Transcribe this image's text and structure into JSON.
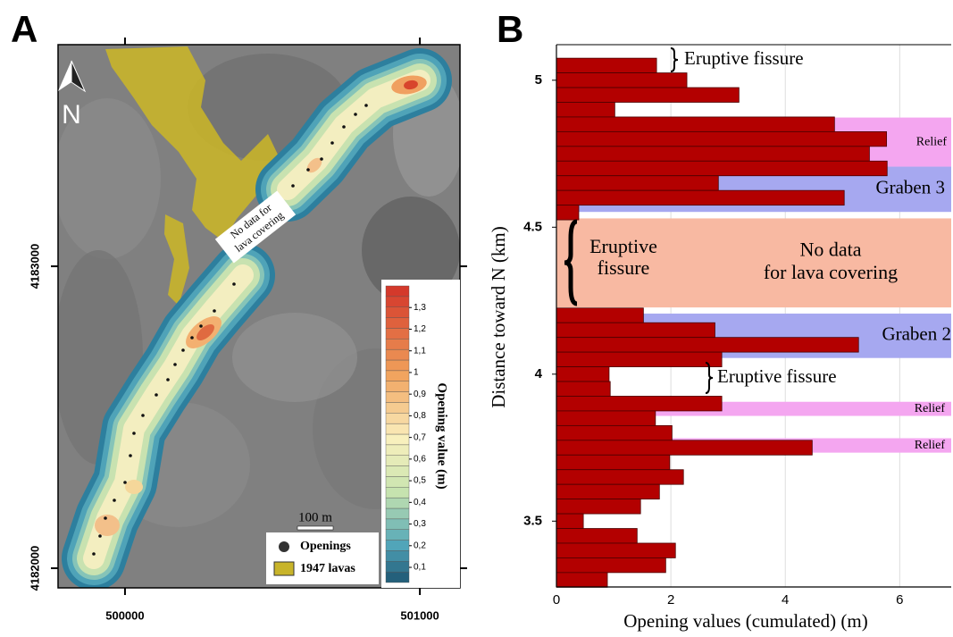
{
  "panel_a": {
    "label": "A",
    "north": "N",
    "no_data_label": [
      "No data for",
      "lava covering"
    ],
    "scale_bar": "100 m",
    "legend": [
      "Openings",
      "1947 lavas"
    ],
    "colorbar": {
      "title": "Opening value (m)",
      "lim": [
        0.03,
        1.4
      ],
      "ticks": [
        {
          "value": 1.3,
          "label": "1,3"
        },
        {
          "value": 1.2,
          "label": "1,2"
        },
        {
          "value": 1.1,
          "label": "1,1"
        },
        1,
        {
          "value": 0.9,
          "label": "0,9"
        },
        {
          "value": 0.8,
          "label": "0,8"
        },
        {
          "value": 0.7,
          "label": "0,7"
        },
        {
          "value": 0.6,
          "label": "0,6"
        },
        {
          "value": 0.5,
          "label": "0,5"
        },
        {
          "value": 0.4,
          "label": "0,4"
        },
        {
          "value": 0.3,
          "label": "0,3"
        },
        {
          "value": 0.2,
          "label": "0,2"
        },
        {
          "value": 0.1,
          "label": "0,1"
        }
      ]
    },
    "xlim": [
      499773,
      501136
    ],
    "ylim": [
      4181935,
      4183734
    ],
    "xticks": [
      500000,
      501000
    ],
    "yticks": [
      4182000,
      4183000
    ]
  },
  "chart_data": {
    "type": "barh",
    "panel_label": "B",
    "xlabel": "Opening values (cumulated) (m)",
    "ylabel": "Distance toward N (km)",
    "y": [
      5.05,
      5.0,
      4.95,
      4.9,
      4.85,
      4.8,
      4.75,
      4.7,
      4.65,
      4.6,
      4.55,
      4.2,
      4.15,
      4.1,
      4.05,
      4.0,
      3.95,
      3.9,
      3.85,
      3.8,
      3.75,
      3.7,
      3.65,
      3.6,
      3.55,
      3.5,
      3.45,
      3.4,
      3.35,
      3.3
    ],
    "values": [
      1.75,
      2.28,
      3.19,
      1.02,
      4.86,
      5.77,
      5.47,
      5.78,
      2.83,
      5.03,
      0.39,
      1.52,
      2.77,
      5.28,
      2.89,
      0.92,
      0.94,
      2.89,
      1.73,
      2.02,
      4.47,
      1.98,
      2.22,
      1.8,
      1.47,
      0.47,
      1.41,
      2.08,
      1.91,
      0.89
    ],
    "color": "#b30000",
    "xlim": [
      0,
      6.9
    ],
    "xticks": [
      0,
      2,
      4,
      6
    ],
    "ylim": [
      3.276,
      5.121
    ],
    "yticks": [
      3.5,
      4,
      4.5,
      5
    ],
    "grid": true,
    "regions": [
      {
        "label": [
          "Relief"
        ],
        "range": [
          4.706,
          4.873
        ],
        "color": "#f4a6f0"
      },
      {
        "label": [
          "Graben 3"
        ],
        "range": [
          4.552,
          4.706
        ],
        "color": "#a6a8f0"
      },
      {
        "label": [
          "No data",
          "for lava covering"
        ],
        "range": [
          4.227,
          4.53
        ],
        "color": "#f8b9a2"
      },
      {
        "label": [
          "Graben 2"
        ],
        "range": [
          4.055,
          4.206
        ],
        "color": "#a6a8f0"
      },
      {
        "label": [
          "Relief"
        ],
        "range": [
          3.858,
          3.906
        ],
        "color": "#f4a6f0"
      },
      {
        "label": [
          "Relief"
        ],
        "range": [
          3.733,
          3.782
        ],
        "color": "#f4a6f0"
      }
    ],
    "annotations": [
      [
        "Eruptive fissure"
      ],
      [
        "Eruptive",
        "fissure"
      ],
      [
        "Eruptive fissure"
      ]
    ]
  }
}
